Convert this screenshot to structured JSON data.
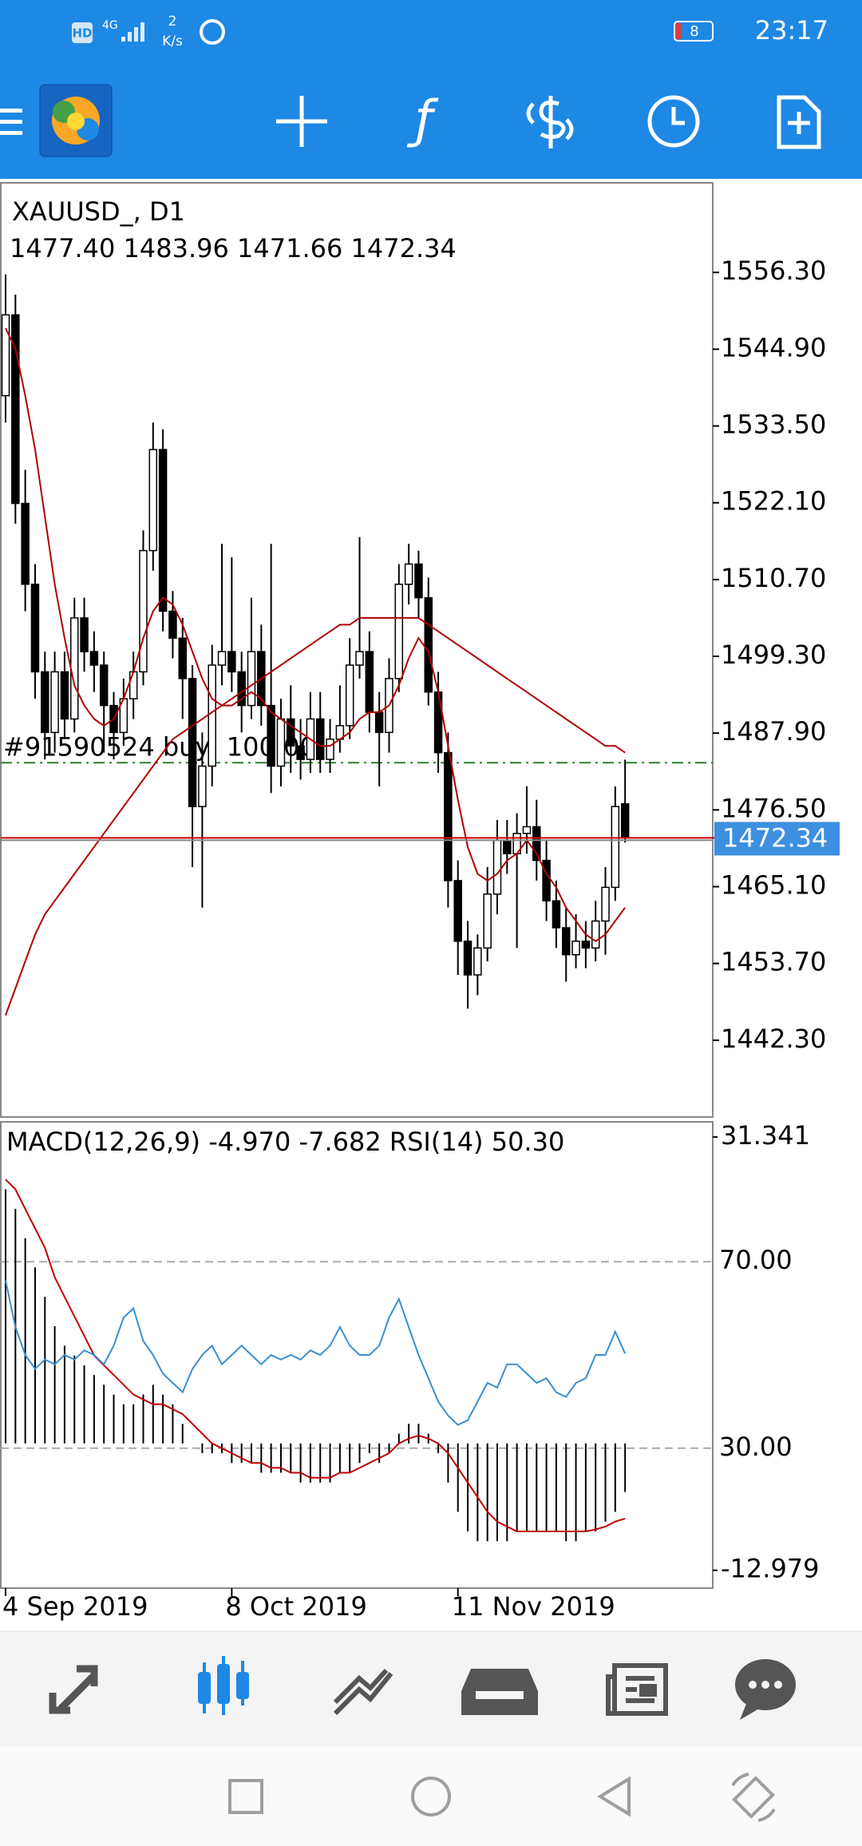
{
  "status_bar": {
    "hd": "HD",
    "network": "4G",
    "speed": "2",
    "speed_unit": "K/s",
    "battery": "8",
    "time": "23:17"
  },
  "chart_data": {
    "type": "candlestick",
    "title": "XAUUSD_, D1",
    "ohlc_label": "1477.40 1483.96 1471.66 1472.34",
    "categories": [
      "4 Sep 2019",
      null,
      null,
      null,
      null,
      null,
      null,
      null,
      null,
      null,
      null,
      null,
      null,
      null,
      null,
      null,
      null,
      null,
      null,
      null,
      null,
      null,
      null,
      "8 Oct 2019",
      null,
      null,
      null,
      null,
      null,
      null,
      null,
      null,
      null,
      null,
      null,
      null,
      null,
      null,
      null,
      null,
      null,
      null,
      null,
      null,
      null,
      null,
      "11 Nov 2019",
      null,
      null,
      null,
      null,
      null,
      null,
      null,
      null,
      null,
      null,
      null,
      null,
      null,
      null,
      null,
      null,
      null
    ],
    "candles": [
      [
        1538,
        1556,
        1534,
        1550
      ],
      [
        1550,
        1553,
        1519,
        1522
      ],
      [
        1522,
        1527,
        1506,
        1510
      ],
      [
        1510,
        1513,
        1493,
        1497
      ],
      [
        1497,
        1500,
        1484,
        1488
      ],
      [
        1488,
        1500,
        1485,
        1497
      ],
      [
        1497,
        1500,
        1487,
        1490
      ],
      [
        1490,
        1508,
        1488,
        1505
      ],
      [
        1505,
        1508,
        1497,
        1500
      ],
      [
        1500,
        1503,
        1494,
        1498
      ],
      [
        1498,
        1500,
        1485,
        1492
      ],
      [
        1492,
        1494,
        1484,
        1488
      ],
      [
        1488,
        1496,
        1486,
        1493
      ],
      [
        1493,
        1500,
        1490,
        1497
      ],
      [
        1497,
        1518,
        1495,
        1515
      ],
      [
        1515,
        1534,
        1512,
        1530
      ],
      [
        1530,
        1533,
        1503,
        1506
      ],
      [
        1506,
        1509,
        1499,
        1502
      ],
      [
        1502,
        1505,
        1490,
        1496
      ],
      [
        1496,
        1498,
        1468,
        1477
      ],
      [
        1477,
        1488,
        1462,
        1483
      ],
      [
        1483,
        1501,
        1480,
        1498
      ],
      [
        1498,
        1516,
        1495,
        1500
      ],
      [
        1500,
        1514,
        1494,
        1497
      ],
      [
        1497,
        1500,
        1488,
        1492
      ],
      [
        1492,
        1508,
        1490,
        1500
      ],
      [
        1500,
        1504,
        1489,
        1492
      ],
      [
        1492,
        1516,
        1479,
        1483
      ],
      [
        1483,
        1493,
        1480,
        1490
      ],
      [
        1490,
        1495,
        1482,
        1486
      ],
      [
        1486,
        1490,
        1481,
        1484
      ],
      [
        1484,
        1494,
        1482,
        1490
      ],
      [
        1490,
        1494,
        1482,
        1484
      ],
      [
        1484,
        1490,
        1482,
        1487
      ],
      [
        1487,
        1495,
        1485,
        1489
      ],
      [
        1489,
        1502,
        1487,
        1498
      ],
      [
        1498,
        1517,
        1496,
        1500
      ],
      [
        1500,
        1503,
        1488,
        1491
      ],
      [
        1491,
        1494,
        1480,
        1488
      ],
      [
        1488,
        1499,
        1485,
        1496
      ],
      [
        1496,
        1513,
        1494,
        1510
      ],
      [
        1510,
        1516,
        1507,
        1513
      ],
      [
        1513,
        1515,
        1505,
        1508
      ],
      [
        1508,
        1511,
        1492,
        1494
      ],
      [
        1494,
        1497,
        1482,
        1485
      ],
      [
        1485,
        1488,
        1462,
        1466
      ],
      [
        1466,
        1469,
        1452,
        1457
      ],
      [
        1457,
        1460,
        1447,
        1452
      ],
      [
        1452,
        1458,
        1449,
        1456
      ],
      [
        1456,
        1468,
        1454,
        1464
      ],
      [
        1464,
        1475,
        1461,
        1472
      ],
      [
        1472,
        1475,
        1467,
        1470
      ],
      [
        1470,
        1476,
        1456,
        1473
      ],
      [
        1473,
        1480,
        1470,
        1474
      ],
      [
        1474,
        1478,
        1466,
        1469
      ],
      [
        1469,
        1472,
        1460,
        1463
      ],
      [
        1463,
        1466,
        1456,
        1459
      ],
      [
        1459,
        1462,
        1451,
        1455
      ],
      [
        1455,
        1461,
        1453,
        1457
      ],
      [
        1457,
        1460,
        1453,
        1456
      ],
      [
        1456,
        1463,
        1454,
        1460
      ],
      [
        1460,
        1468,
        1455,
        1465
      ],
      [
        1465,
        1480,
        1463,
        1477
      ],
      [
        1477.4,
        1483.96,
        1471.66,
        1472.34
      ]
    ],
    "ma_fast": [
      1548,
      1545,
      1538,
      1530,
      1520,
      1510,
      1502,
      1495,
      1492,
      1490,
      1489,
      1490,
      1493,
      1497,
      1502,
      1506,
      1508,
      1507,
      1504,
      1500,
      1496,
      1493,
      1492,
      1492,
      1493,
      1494,
      1493,
      1491,
      1490,
      1489,
      1488,
      1487,
      1486,
      1486,
      1487,
      1488,
      1490,
      1491,
      1491,
      1492,
      1495,
      1499,
      1502,
      1500,
      1494,
      1486,
      1478,
      1471,
      1467,
      1466,
      1467,
      1469,
      1470,
      1472,
      1470,
      1467,
      1465,
      1462,
      1460,
      1458,
      1457,
      1458,
      1460,
      1462
    ],
    "ma_slow": [
      1446,
      1450,
      1454,
      1458,
      1461,
      1463,
      1465,
      1467,
      1469,
      1471,
      1473,
      1475,
      1477,
      1479,
      1481,
      1483,
      1485,
      1487,
      1488,
      1489,
      1490,
      1491,
      1492,
      1493,
      1494,
      1495,
      1496,
      1497,
      1498,
      1499,
      1500,
      1501,
      1502,
      1503,
      1504,
      1504,
      1505,
      1505,
      1505,
      1505,
      1505,
      1505,
      1505,
      1504,
      1503,
      1502,
      1501,
      1500,
      1499,
      1498,
      1497,
      1496,
      1495,
      1494,
      1493,
      1492,
      1491,
      1490,
      1489,
      1488,
      1487,
      1486,
      1486,
      1485
    ],
    "ma_color": "#b00000",
    "bull_color": "#ffffff",
    "bear_color": "#000000",
    "ylim": [
      1430.9,
      1569.6
    ],
    "yticks": [
      {
        "value": 1556.3,
        "label": "1556.30"
      },
      {
        "value": 1544.9,
        "label": "1544.90"
      },
      {
        "value": 1533.5,
        "label": "1533.50"
      },
      {
        "value": 1522.1,
        "label": "1522.10"
      },
      {
        "value": 1510.7,
        "label": "1510.70"
      },
      {
        "value": 1499.3,
        "label": "1499.30"
      },
      {
        "value": 1487.9,
        "label": "1487.90"
      },
      {
        "value": 1476.5,
        "label": "1476.50"
      },
      {
        "value": 1465.1,
        "label": "1465.10"
      },
      {
        "value": 1453.7,
        "label": "1453.70"
      },
      {
        "value": 1442.3,
        "label": "1442.30"
      }
    ],
    "order_line": {
      "label": "#91590524 buy, 100.00",
      "price": 1483.5,
      "color": "#2e7d32"
    },
    "bid": {
      "value": 1472.34,
      "label": "1472.34",
      "color": "#d00000"
    },
    "indicator": {
      "label": "MACD(12,26,9) -4.970 -7.682 RSI(14) 50.30",
      "macd_lim": [
        -14.8,
        32.9
      ],
      "macd_ticks": [
        31.341,
        -12.979
      ],
      "rsi_lim": [
        0,
        100
      ],
      "rsi_ticks": [
        {
          "value": 70,
          "label": "70.00"
        },
        {
          "value": 30,
          "label": "30.00"
        }
      ],
      "macd_hist": [
        26,
        24,
        21,
        18,
        15,
        12,
        10,
        9,
        8,
        7,
        6,
        5,
        4,
        4,
        5,
        6,
        5,
        4,
        2,
        0,
        -1,
        -1,
        -1,
        -2,
        -2,
        -2,
        -3,
        -3,
        -3,
        -3,
        -4,
        -4,
        -4,
        -4,
        -3,
        -3,
        -2,
        -1,
        -2,
        -1,
        1,
        2,
        2,
        1,
        -1,
        -4,
        -7,
        -9,
        -10,
        -10,
        -10,
        -10,
        -9,
        -9,
        -9,
        -9,
        -9,
        -10,
        -10,
        -9,
        -9,
        -8,
        -7,
        -4.97
      ],
      "signal": [
        27,
        26,
        24,
        22,
        20,
        17,
        15,
        13,
        11,
        9,
        8,
        7,
        6,
        5,
        4.5,
        4,
        4,
        3.5,
        3,
        2,
        1,
        0,
        -0.5,
        -1,
        -1.5,
        -2,
        -2,
        -2.5,
        -2.5,
        -3,
        -3,
        -3.5,
        -3.5,
        -3.5,
        -3,
        -3,
        -2.5,
        -2,
        -1.5,
        -1,
        0,
        0.5,
        0.8,
        0.5,
        0,
        -1,
        -2.5,
        -4,
        -5.5,
        -7,
        -8,
        -8.5,
        -9,
        -9,
        -9,
        -9,
        -9,
        -9,
        -9,
        -9,
        -8.8,
        -8.5,
        -8,
        -7.682
      ],
      "rsi": [
        66,
        56,
        50,
        47,
        49,
        48,
        50,
        49,
        51,
        50,
        48,
        52,
        58,
        60,
        53,
        50,
        46,
        44,
        42,
        47,
        50,
        52,
        48,
        50,
        52,
        50,
        48,
        50,
        49,
        50,
        49,
        51,
        50,
        52,
        56,
        52,
        50,
        50,
        52,
        58,
        62,
        56,
        50,
        45,
        40,
        37,
        35,
        36,
        40,
        44,
        43,
        48,
        48,
        46,
        44,
        45,
        42,
        41,
        44,
        45,
        50,
        50,
        55,
        50.3
      ],
      "signal_color": "#c00000",
      "rsi_color": "#3a8fcf",
      "hist_color": "#000000"
    }
  }
}
